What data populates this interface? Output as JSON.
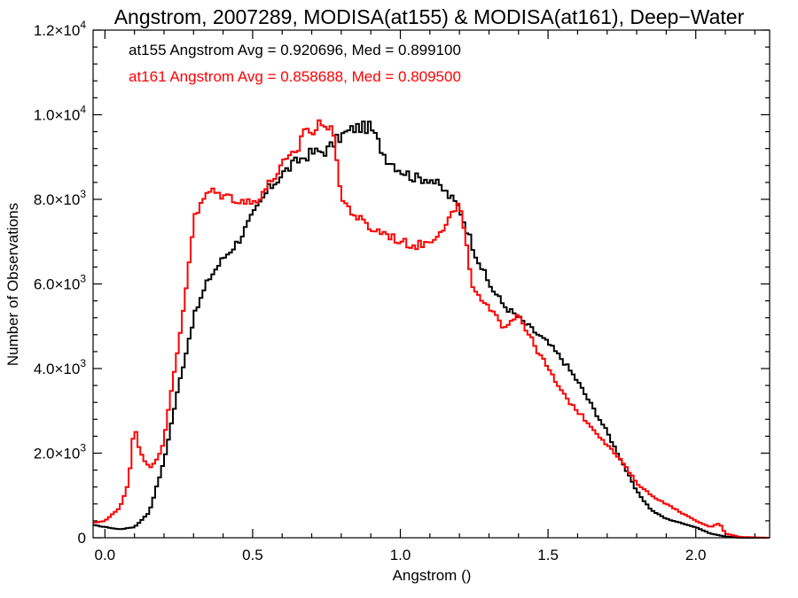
{
  "chart_data": {
    "type": "line",
    "title": "Angstrom, 2007289, MODISA(at155) & MODISA(at161), Deep−Water",
    "xlabel": "Angstrom ()",
    "ylabel": "Number of Observations",
    "xlim": [
      -0.04,
      2.25
    ],
    "ylim": [
      0,
      12000
    ],
    "grid": false,
    "xticks": [
      {
        "value": 0.0,
        "label": "0.0"
      },
      {
        "value": 0.5,
        "label": "0.5"
      },
      {
        "value": 1.0,
        "label": "1.0"
      },
      {
        "value": 1.5,
        "label": "1.5"
      },
      {
        "value": 2.0,
        "label": "2.0"
      }
    ],
    "yticks": [
      {
        "value": 0,
        "mant": "0",
        "exp": ""
      },
      {
        "value": 2000,
        "mant": "2.0×10",
        "exp": "3"
      },
      {
        "value": 4000,
        "mant": "4.0×10",
        "exp": "3"
      },
      {
        "value": 6000,
        "mant": "6.0×10",
        "exp": "3"
      },
      {
        "value": 8000,
        "mant": "8.0×10",
        "exp": "3"
      },
      {
        "value": 10000,
        "mant": "1.0×10",
        "exp": "4"
      },
      {
        "value": 12000,
        "mant": "1.2×10",
        "exp": "4"
      }
    ],
    "annotations": [
      {
        "text": "at155 Angstrom Avg = 0.920696, Med = 0.899100",
        "color": "#000000"
      },
      {
        "text": "at161 Angstrom Avg = 0.858688, Med = 0.809500",
        "color": "#ff0000"
      }
    ],
    "series": [
      {
        "color": "#000000",
        "points": [
          [
            -0.04,
            300
          ],
          [
            0.05,
            200
          ],
          [
            0.1,
            250
          ],
          [
            0.15,
            600
          ],
          [
            0.2,
            1800
          ],
          [
            0.25,
            3600
          ],
          [
            0.3,
            5200
          ],
          [
            0.35,
            6100
          ],
          [
            0.4,
            6600
          ],
          [
            0.45,
            7000
          ],
          [
            0.5,
            7600
          ],
          [
            0.55,
            8200
          ],
          [
            0.6,
            8600
          ],
          [
            0.65,
            8900
          ],
          [
            0.7,
            9100
          ],
          [
            0.75,
            9150
          ],
          [
            0.8,
            9500
          ],
          [
            0.85,
            9700
          ],
          [
            0.9,
            9700
          ],
          [
            0.95,
            9000
          ],
          [
            1.0,
            8700
          ],
          [
            1.05,
            8500
          ],
          [
            1.1,
            8500
          ],
          [
            1.15,
            8200
          ],
          [
            1.2,
            7800
          ],
          [
            1.25,
            6800
          ],
          [
            1.3,
            6000
          ],
          [
            1.35,
            5500
          ],
          [
            1.4,
            5200
          ],
          [
            1.45,
            4900
          ],
          [
            1.5,
            4600
          ],
          [
            1.55,
            4200
          ],
          [
            1.6,
            3700
          ],
          [
            1.65,
            3100
          ],
          [
            1.7,
            2500
          ],
          [
            1.75,
            1800
          ],
          [
            1.8,
            1100
          ],
          [
            1.85,
            650
          ],
          [
            1.9,
            450
          ],
          [
            1.95,
            350
          ],
          [
            2.0,
            250
          ],
          [
            2.05,
            100
          ],
          [
            2.1,
            30
          ],
          [
            2.15,
            0
          ],
          [
            2.25,
            0
          ]
        ]
      },
      {
        "color": "#ff0000",
        "points": [
          [
            -0.04,
            350
          ],
          [
            0.0,
            400
          ],
          [
            0.05,
            700
          ],
          [
            0.08,
            1300
          ],
          [
            0.1,
            2700
          ],
          [
            0.12,
            2000
          ],
          [
            0.15,
            1650
          ],
          [
            0.18,
            1900
          ],
          [
            0.2,
            2300
          ],
          [
            0.25,
            4600
          ],
          [
            0.28,
            6200
          ],
          [
            0.3,
            7500
          ],
          [
            0.35,
            8200
          ],
          [
            0.4,
            8100
          ],
          [
            0.45,
            8000
          ],
          [
            0.5,
            7900
          ],
          [
            0.55,
            8300
          ],
          [
            0.6,
            8800
          ],
          [
            0.65,
            9100
          ],
          [
            0.68,
            9800
          ],
          [
            0.7,
            9500
          ],
          [
            0.74,
            9900
          ],
          [
            0.78,
            9400
          ],
          [
            0.8,
            8000
          ],
          [
            0.85,
            7600
          ],
          [
            0.9,
            7300
          ],
          [
            0.95,
            7200
          ],
          [
            1.0,
            7000
          ],
          [
            1.05,
            6900
          ],
          [
            1.1,
            7000
          ],
          [
            1.15,
            7400
          ],
          [
            1.2,
            7900
          ],
          [
            1.23,
            6600
          ],
          [
            1.25,
            5800
          ],
          [
            1.3,
            5400
          ],
          [
            1.35,
            5000
          ],
          [
            1.4,
            5300
          ],
          [
            1.45,
            4600
          ],
          [
            1.5,
            4000
          ],
          [
            1.55,
            3400
          ],
          [
            1.6,
            3000
          ],
          [
            1.65,
            2600
          ],
          [
            1.7,
            2200
          ],
          [
            1.75,
            1800
          ],
          [
            1.8,
            1300
          ],
          [
            1.85,
            1000
          ],
          [
            1.9,
            800
          ],
          [
            1.95,
            600
          ],
          [
            2.0,
            400
          ],
          [
            2.05,
            250
          ],
          [
            2.08,
            350
          ],
          [
            2.1,
            100
          ],
          [
            2.15,
            20
          ],
          [
            2.25,
            0
          ]
        ]
      }
    ]
  }
}
